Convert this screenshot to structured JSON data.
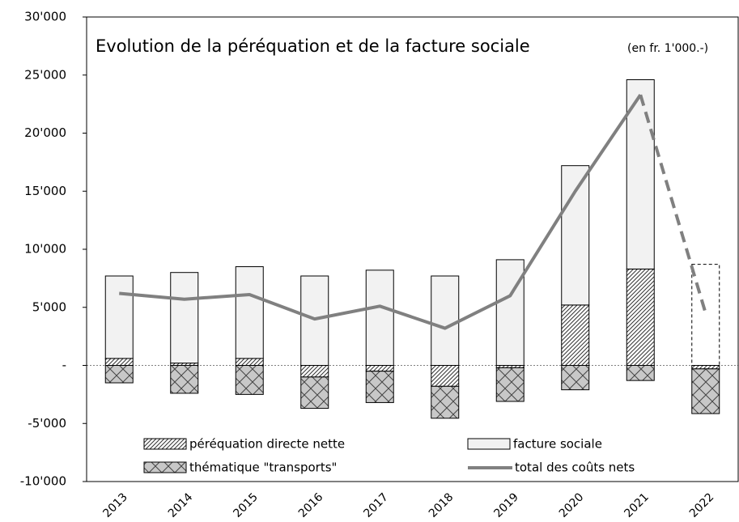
{
  "chart_data": {
    "type": "stacked_bar_line",
    "title": "Evolution de la péréquation et de la facture sociale",
    "subtitle": "(en fr. 1'000.-)",
    "categories": [
      "2013",
      "2014",
      "2015",
      "2016",
      "2017",
      "2018",
      "2019",
      "2020",
      "2021",
      "2022"
    ],
    "series": [
      {
        "name": "péréquation directe nette",
        "kind": "bar",
        "pattern": "diagonal",
        "color": "#333333",
        "values": [
          600,
          200,
          600,
          -1000,
          -500,
          -1800,
          -200,
          5200,
          8300,
          -300
        ]
      },
      {
        "name": "facture sociale",
        "kind": "bar",
        "pattern": "none",
        "color": "#f2f2f2",
        "values": [
          7100,
          7800,
          7900,
          7700,
          8200,
          7700,
          9100,
          12000,
          16300,
          8700
        ]
      },
      {
        "name": "thématique \"transports\"",
        "kind": "bar",
        "pattern": "cross",
        "color": "#c8c8c8",
        "values": [
          -1500,
          -2400,
          -2500,
          -2700,
          -2700,
          -2750,
          -2900,
          -2100,
          -1300,
          -3850
        ]
      },
      {
        "name": "total des coûts nets",
        "kind": "line",
        "color": "#808080",
        "values": [
          6200,
          5700,
          6100,
          4000,
          5100,
          3200,
          6000,
          15000,
          23300,
          4500
        ]
      }
    ],
    "projected": "2022",
    "ylim": [
      -10000,
      30000
    ],
    "yticks": [
      {
        "value": -10000,
        "label": "-10'000"
      },
      {
        "value": -5000,
        "label": "-5'000"
      },
      {
        "value": 0,
        "label": "-"
      },
      {
        "value": 5000,
        "label": "5'000"
      },
      {
        "value": 10000,
        "label": "10'000"
      },
      {
        "value": 15000,
        "label": "15'000"
      },
      {
        "value": 20000,
        "label": "20'000"
      },
      {
        "value": 25000,
        "label": "25'000"
      },
      {
        "value": 30000,
        "label": "30'000"
      }
    ],
    "grid": false,
    "legend": "bottom"
  }
}
